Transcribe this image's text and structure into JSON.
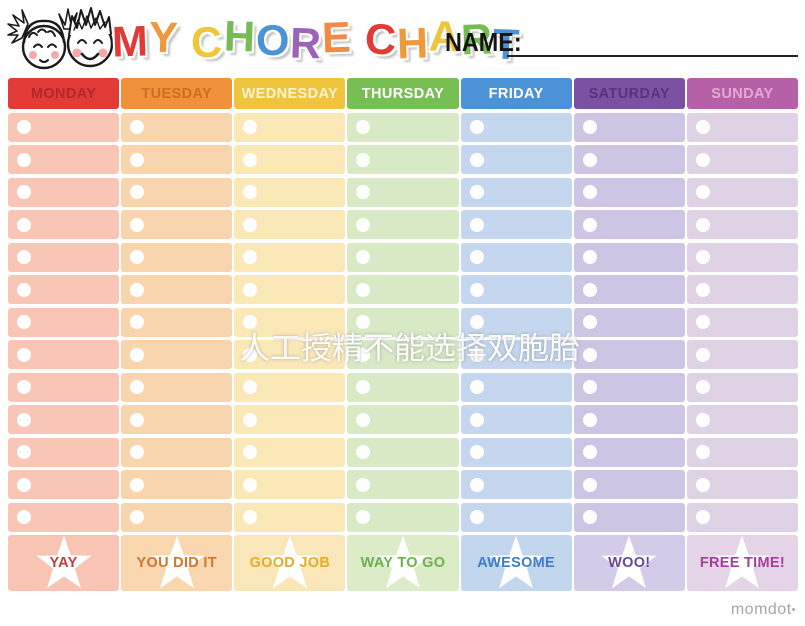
{
  "header": {
    "illustration": "two-kids-faces",
    "title": "MY CHORE CHART",
    "title_letters": [
      {
        "ch": "M",
        "color": "#e23a36"
      },
      {
        "ch": "Y",
        "color": "#f0993c"
      },
      {
        "ch": " "
      },
      {
        "ch": "C",
        "color": "#f0c53e"
      },
      {
        "ch": "H",
        "color": "#74bd52"
      },
      {
        "ch": "O",
        "color": "#4b92d6"
      },
      {
        "ch": "R",
        "color": "#9c64b8"
      },
      {
        "ch": "E",
        "color": "#f08a44"
      },
      {
        "ch": " "
      },
      {
        "ch": "C",
        "color": "#e23a36"
      },
      {
        "ch": "H",
        "color": "#f0993c"
      },
      {
        "ch": "A",
        "color": "#f0c53e"
      },
      {
        "ch": "R",
        "color": "#74bd52"
      },
      {
        "ch": "T",
        "color": "#4b92d6"
      }
    ],
    "name_label": "NAME:"
  },
  "table": {
    "rows_per_column": 13,
    "columns": [
      {
        "day": "MONDAY",
        "header_bg": "#e23b37",
        "header_text": "#b4262e",
        "row_bg": "#f9c6b6",
        "footer_bg": "#f8c4b4",
        "footer_label": "YAY",
        "footer_text": "#c23c3a"
      },
      {
        "day": "TUESDAY",
        "header_bg": "#f0923c",
        "header_text": "#cf6e20",
        "row_bg": "#f9d5ad",
        "footer_bg": "#fad7af",
        "footer_label": "YOU DID IT",
        "footer_text": "#cd7531"
      },
      {
        "day": "WEDNESDAY",
        "header_bg": "#efc53e",
        "header_text": "#fdf3d3",
        "row_bg": "#fae8b7",
        "footer_bg": "#fae7b9",
        "footer_label": "GOOD JOB",
        "footer_text": "#e2ac2b"
      },
      {
        "day": "THURSDAY",
        "header_bg": "#77bf53",
        "header_text": "#ffffff",
        "row_bg": "#d8e9c5",
        "footer_bg": "#dcebc8",
        "footer_label": "WAY TO GO",
        "footer_text": "#68b34d"
      },
      {
        "day": "FRIDAY",
        "header_bg": "#4b92d6",
        "header_text": "#ffffff",
        "row_bg": "#c4d7ef",
        "footer_bg": "#c2d6ee",
        "footer_label": "AWESOME",
        "footer_text": "#3e7dca"
      },
      {
        "day": "SATURDAY",
        "header_bg": "#7b51a3",
        "header_text": "#57327e",
        "row_bg": "#ccc5e3",
        "footer_bg": "#d3cbe8",
        "footer_label": "WOO!",
        "footer_text": "#6a4796"
      },
      {
        "day": "SUNDAY",
        "header_bg": "#b660a7",
        "header_text": "#e5a8d3",
        "row_bg": "#e0d2e5",
        "footer_bg": "#e5d3e7",
        "footer_label": "FREE TIME!",
        "footer_text": "#a53f9b"
      }
    ]
  },
  "watermark": {
    "text": "人工授精不能选择双胞胎",
    "color": "#ffffff"
  },
  "branding": {
    "name": "momdot",
    "dot": "•",
    "color": "#aba3a9"
  }
}
